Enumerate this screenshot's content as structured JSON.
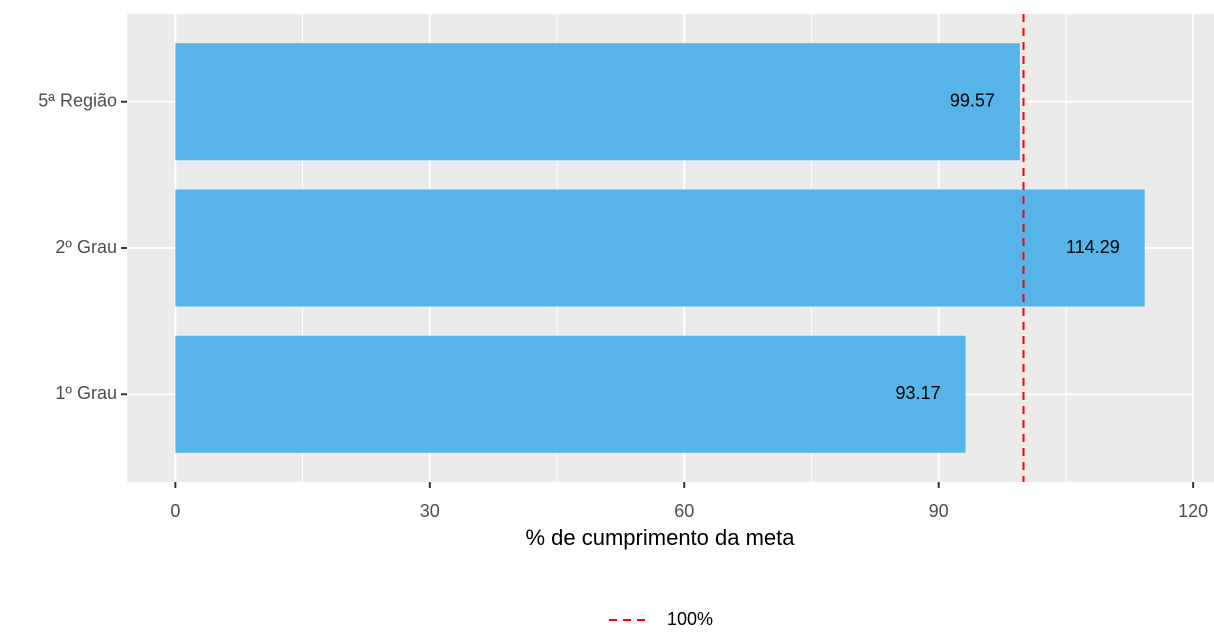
{
  "chart_data": {
    "type": "bar",
    "orientation": "horizontal",
    "xlabel": "% de cumprimento da meta",
    "categories": [
      "5ª Região",
      "2º Grau",
      "1º Grau"
    ],
    "values": [
      99.57,
      114.29,
      93.17
    ],
    "color": "#56B4E9",
    "xlim": [
      -5.7,
      120.1
    ],
    "xticks": [
      0,
      30,
      60,
      90,
      120
    ],
    "xminorticks": [
      15,
      45,
      75,
      105
    ],
    "grid": true,
    "reference_line": {
      "value": 100,
      "label": "100%",
      "color": "#FF0000"
    },
    "legend": "bottom"
  }
}
